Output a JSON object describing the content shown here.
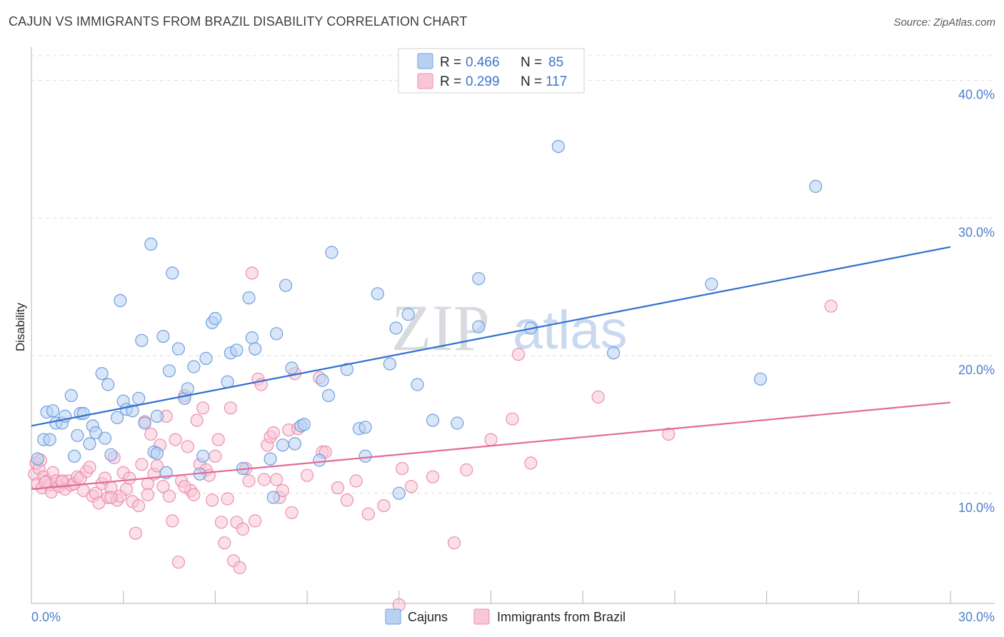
{
  "header": {
    "title": "CAJUN VS IMMIGRANTS FROM BRAZIL DISABILITY CORRELATION CHART",
    "source": "Source: ZipAtlas.com"
  },
  "watermark": {
    "zip": "ZIP",
    "atlas": "atlas"
  },
  "colors": {
    "cajun_fill": "#b8d1f3",
    "cajun_stroke": "#6f9fdf",
    "cajun_line": "#2f6fd0",
    "brazil_fill": "#f8c6d6",
    "brazil_stroke": "#ec8fae",
    "brazil_line": "#e26a96",
    "grid": "#dddddd",
    "tick_label": "#4d7fcf"
  },
  "legend": {
    "rows": [
      {
        "r_label": "R =",
        "r_value": "0.466",
        "n_label": "N =",
        "n_value": "85"
      },
      {
        "r_label": "R =",
        "r_value": "0.299",
        "n_label": "N =",
        "n_value": "117"
      }
    ]
  },
  "chart_data": {
    "type": "scatter",
    "xlabel": "",
    "ylabel": "Disability",
    "xlim": [
      0,
      30
    ],
    "ylim": [
      2,
      42
    ],
    "x_tick_labels": [
      "0.0%",
      "30.0%"
    ],
    "y_ticks": [
      10,
      20,
      30,
      40
    ],
    "y_tick_labels": [
      "10.0%",
      "20.0%",
      "30.0%",
      "40.0%"
    ],
    "grid": true,
    "legend_position": "top-center",
    "series": [
      {
        "name": "Cajuns",
        "trend": {
          "x": [
            0,
            30
          ],
          "y": [
            14.9,
            27.9
          ]
        },
        "points": [
          [
            0.2,
            12.5
          ],
          [
            0.4,
            13.9
          ],
          [
            0.5,
            15.9
          ],
          [
            0.6,
            13.9
          ],
          [
            0.7,
            16.0
          ],
          [
            0.8,
            15.1
          ],
          [
            1.0,
            15.1
          ],
          [
            1.1,
            15.6
          ],
          [
            1.3,
            17.1
          ],
          [
            1.4,
            12.7
          ],
          [
            1.5,
            14.2
          ],
          [
            1.6,
            15.8
          ],
          [
            1.7,
            15.8
          ],
          [
            1.9,
            13.6
          ],
          [
            2.0,
            14.9
          ],
          [
            2.1,
            14.4
          ],
          [
            2.3,
            18.7
          ],
          [
            2.4,
            14.0
          ],
          [
            2.5,
            17.9
          ],
          [
            2.6,
            12.8
          ],
          [
            2.8,
            15.5
          ],
          [
            2.9,
            24.0
          ],
          [
            3.0,
            16.7
          ],
          [
            3.1,
            16.1
          ],
          [
            3.3,
            16.0
          ],
          [
            3.5,
            16.9
          ],
          [
            3.6,
            21.1
          ],
          [
            3.7,
            15.1
          ],
          [
            3.9,
            28.1
          ],
          [
            4.0,
            13.0
          ],
          [
            4.1,
            15.6
          ],
          [
            4.3,
            21.4
          ],
          [
            4.4,
            11.5
          ],
          [
            4.5,
            18.9
          ],
          [
            4.6,
            26.0
          ],
          [
            4.8,
            20.5
          ],
          [
            5.0,
            16.9
          ],
          [
            5.1,
            17.6
          ],
          [
            5.3,
            19.2
          ],
          [
            5.5,
            11.4
          ],
          [
            5.6,
            12.7
          ],
          [
            5.7,
            19.8
          ],
          [
            5.9,
            22.4
          ],
          [
            6.0,
            22.7
          ],
          [
            6.4,
            18.1
          ],
          [
            6.5,
            20.2
          ],
          [
            6.7,
            20.4
          ],
          [
            6.9,
            11.8
          ],
          [
            7.1,
            24.2
          ],
          [
            7.2,
            21.3
          ],
          [
            7.3,
            20.5
          ],
          [
            7.8,
            12.5
          ],
          [
            7.9,
            9.7
          ],
          [
            8.0,
            21.6
          ],
          [
            8.2,
            13.5
          ],
          [
            8.3,
            25.1
          ],
          [
            8.5,
            19.1
          ],
          [
            8.6,
            13.6
          ],
          [
            8.8,
            14.9
          ],
          [
            8.9,
            15.0
          ],
          [
            9.4,
            12.4
          ],
          [
            9.5,
            18.2
          ],
          [
            9.7,
            17.1
          ],
          [
            9.8,
            27.5
          ],
          [
            10.3,
            19.0
          ],
          [
            10.7,
            14.7
          ],
          [
            10.9,
            12.7
          ],
          [
            10.9,
            14.8
          ],
          [
            11.3,
            24.5
          ],
          [
            11.7,
            19.4
          ],
          [
            11.9,
            22.0
          ],
          [
            12.3,
            23.0
          ],
          [
            12.0,
            10.0
          ],
          [
            12.6,
            17.9
          ],
          [
            13.1,
            15.3
          ],
          [
            13.9,
            15.1
          ],
          [
            14.6,
            25.6
          ],
          [
            14.6,
            22.1
          ],
          [
            16.3,
            22.0
          ],
          [
            17.2,
            35.2
          ],
          [
            19.0,
            20.2
          ],
          [
            22.2,
            25.2
          ],
          [
            23.8,
            18.3
          ],
          [
            25.6,
            32.3
          ],
          [
            4.1,
            12.9
          ]
        ]
      },
      {
        "name": "Immigrants from Brazil",
        "trend": {
          "x": [
            0,
            30
          ],
          "y": [
            10.3,
            16.6
          ]
        },
        "points": [
          [
            0.1,
            11.4
          ],
          [
            0.15,
            12.2
          ],
          [
            0.2,
            10.7
          ],
          [
            0.25,
            11.8
          ],
          [
            0.3,
            12.4
          ],
          [
            0.35,
            10.4
          ],
          [
            0.4,
            11.2
          ],
          [
            0.5,
            10.9
          ],
          [
            0.6,
            10.6
          ],
          [
            0.65,
            10.1
          ],
          [
            0.7,
            11.5
          ],
          [
            0.8,
            10.9
          ],
          [
            0.9,
            10.5
          ],
          [
            1.0,
            10.8
          ],
          [
            1.1,
            10.3
          ],
          [
            1.2,
            10.9
          ],
          [
            1.3,
            10.6
          ],
          [
            1.4,
            10.7
          ],
          [
            1.5,
            11.2
          ],
          [
            1.6,
            11.1
          ],
          [
            1.7,
            10.2
          ],
          [
            1.8,
            11.6
          ],
          [
            1.9,
            11.9
          ],
          [
            2.0,
            9.8
          ],
          [
            2.1,
            10.0
          ],
          [
            2.2,
            9.3
          ],
          [
            2.3,
            10.7
          ],
          [
            2.4,
            11.1
          ],
          [
            2.5,
            9.7
          ],
          [
            2.6,
            10.4
          ],
          [
            2.7,
            12.6
          ],
          [
            2.8,
            9.5
          ],
          [
            2.9,
            9.8
          ],
          [
            3.0,
            11.5
          ],
          [
            3.1,
            10.3
          ],
          [
            3.2,
            11.1
          ],
          [
            3.3,
            9.4
          ],
          [
            3.4,
            7.1
          ],
          [
            3.5,
            9.1
          ],
          [
            3.6,
            12.1
          ],
          [
            3.7,
            15.2
          ],
          [
            3.8,
            10.7
          ],
          [
            3.9,
            14.3
          ],
          [
            4.0,
            11.4
          ],
          [
            4.1,
            12.0
          ],
          [
            4.2,
            13.5
          ],
          [
            4.3,
            10.5
          ],
          [
            4.4,
            15.6
          ],
          [
            4.5,
            9.8
          ],
          [
            4.6,
            8.0
          ],
          [
            4.7,
            13.9
          ],
          [
            4.8,
            5.0
          ],
          [
            4.9,
            10.9
          ],
          [
            5.0,
            17.1
          ],
          [
            5.1,
            13.4
          ],
          [
            5.2,
            10.2
          ],
          [
            5.3,
            9.9
          ],
          [
            5.4,
            15.3
          ],
          [
            5.5,
            12.1
          ],
          [
            5.6,
            16.2
          ],
          [
            5.7,
            11.7
          ],
          [
            5.8,
            11.3
          ],
          [
            5.9,
            9.5
          ],
          [
            6.0,
            12.7
          ],
          [
            6.1,
            13.9
          ],
          [
            6.2,
            7.9
          ],
          [
            6.3,
            6.4
          ],
          [
            6.4,
            9.6
          ],
          [
            6.5,
            16.2
          ],
          [
            6.6,
            5.1
          ],
          [
            6.7,
            7.9
          ],
          [
            6.8,
            4.6
          ],
          [
            6.9,
            7.4
          ],
          [
            7.0,
            11.8
          ],
          [
            7.1,
            10.9
          ],
          [
            7.2,
            26.0
          ],
          [
            7.3,
            8.0
          ],
          [
            7.4,
            18.3
          ],
          [
            7.5,
            17.9
          ],
          [
            7.6,
            11.0
          ],
          [
            7.7,
            13.5
          ],
          [
            7.8,
            14.1
          ],
          [
            7.9,
            14.4
          ],
          [
            8.0,
            11.0
          ],
          [
            8.1,
            9.7
          ],
          [
            8.2,
            10.2
          ],
          [
            8.4,
            14.6
          ],
          [
            8.5,
            8.6
          ],
          [
            8.6,
            18.7
          ],
          [
            8.7,
            14.7
          ],
          [
            9.0,
            11.3
          ],
          [
            9.4,
            18.4
          ],
          [
            9.5,
            13.0
          ],
          [
            9.6,
            13.0
          ],
          [
            10.0,
            10.4
          ],
          [
            10.3,
            9.5
          ],
          [
            10.6,
            10.9
          ],
          [
            11.0,
            8.5
          ],
          [
            11.5,
            9.1
          ],
          [
            12.0,
            1.9
          ],
          [
            12.1,
            11.8
          ],
          [
            12.4,
            10.5
          ],
          [
            13.1,
            11.2
          ],
          [
            13.8,
            6.4
          ],
          [
            14.2,
            11.7
          ],
          [
            15.0,
            13.9
          ],
          [
            15.7,
            15.4
          ],
          [
            15.9,
            20.1
          ],
          [
            16.3,
            12.2
          ],
          [
            18.5,
            17.0
          ],
          [
            20.8,
            14.3
          ],
          [
            26.1,
            23.6
          ],
          [
            2.6,
            9.7
          ],
          [
            1.0,
            10.9
          ],
          [
            3.8,
            9.9
          ],
          [
            5.0,
            10.5
          ],
          [
            0.45,
            10.8
          ]
        ]
      }
    ]
  },
  "bottom_legend": {
    "items": [
      {
        "label": "Cajuns"
      },
      {
        "label": "Immigrants from Brazil"
      }
    ]
  }
}
